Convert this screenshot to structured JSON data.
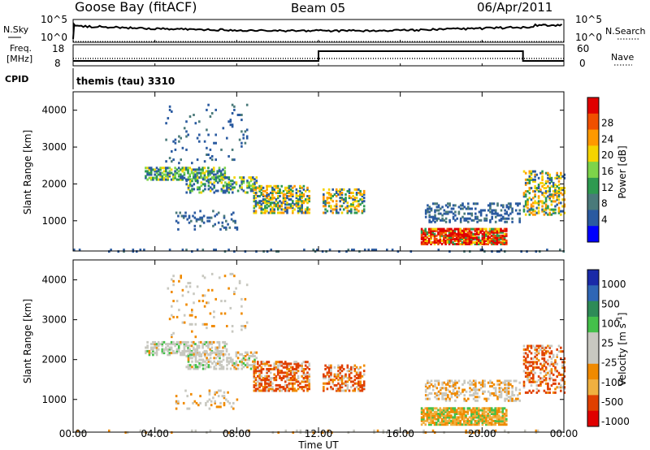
{
  "header": {
    "station": "Goose Bay (fitACF)",
    "beam": "Beam 05",
    "date": "06/Apr/2011"
  },
  "nsky_panel": {
    "left_label": "N.Sky",
    "right_label": "N.Search",
    "left_ticks": [
      "10^5",
      "10^0"
    ],
    "right_ticks": [
      "10^5",
      "10^0"
    ]
  },
  "freq_panel": {
    "left_label_1": "Freq.",
    "left_label_2": "[MHz]",
    "left_ticks": [
      "18",
      "8"
    ],
    "right_label": "Nave",
    "right_ticks": [
      "60",
      "0"
    ],
    "cpid_label": "CPID"
  },
  "cpid_text": "themis (tau) 3310",
  "chart_data": [
    {
      "type": "heatmap",
      "name": "power",
      "ylabel": "Slant Range [km]",
      "yticks": [
        "4000",
        "3000",
        "2000",
        "1000"
      ],
      "ylim": [
        180,
        4500
      ],
      "xlim_hours": [
        0,
        24
      ],
      "colorbar_label": "Power [dB]",
      "colorbar_ticks": [
        "28",
        "24",
        "20",
        "16",
        "12",
        "8",
        "4"
      ],
      "colorbar_colors": [
        "#e00000",
        "#f05000",
        "#ff9900",
        "#f5d400",
        "#7dd44a",
        "#2e9a50",
        "#4a7a7a",
        "#2a5aa0",
        "#0000ff"
      ]
    },
    {
      "type": "heatmap",
      "name": "velocity",
      "ylabel": "Slant Range [km]",
      "yticks": [
        "4000",
        "3000",
        "2000",
        "1000"
      ],
      "ylim": [
        180,
        4500
      ],
      "xlim_hours": [
        0,
        24
      ],
      "colorbar_label": "Velocity [m s^-1]",
      "colorbar_ticks": [
        "1000",
        "500",
        "100",
        "25",
        "-25",
        "-100",
        "-500",
        "-1000"
      ],
      "colorbar_colors": [
        "#1a2aa8",
        "#2f66b5",
        "#2e8b57",
        "#44c04a",
        "#c8c8c0",
        "#c8c8c0",
        "#f08a00",
        "#f0b040",
        "#e04000",
        "#e00000"
      ]
    }
  ],
  "xaxis": {
    "ticks": [
      "00:00",
      "04:00",
      "08:00",
      "12:00",
      "16:00",
      "20:00",
      "00:00"
    ],
    "label": "Time UT"
  }
}
